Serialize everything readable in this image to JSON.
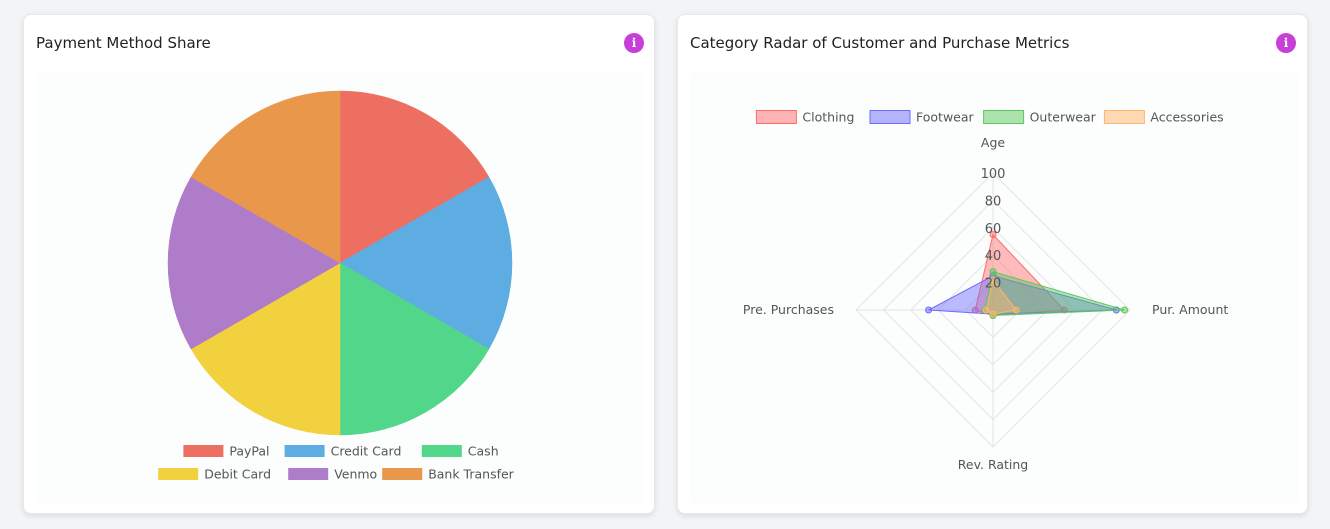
{
  "charts": {
    "pie": {
      "title": "Payment Method Share",
      "info_label": "i"
    },
    "radar": {
      "title": "Category Radar of Customer and Purchase Metrics",
      "info_label": "i"
    }
  },
  "chart_data": [
    {
      "type": "pie",
      "title": "Payment Method Share",
      "legend_position": "bottom",
      "categories": [
        "PayPal",
        "Credit Card",
        "Cash",
        "Debit Card",
        "Venmo",
        "Bank Transfer"
      ],
      "values": [
        1,
        1,
        1,
        1,
        1,
        1
      ],
      "colors": [
        "#ec6f62",
        "#5dade2",
        "#52d68a",
        "#f2d13f",
        "#ae7cc8",
        "#e9974b"
      ]
    },
    {
      "type": "radar",
      "title": "Category Radar of Customer and Purchase Metrics",
      "legend_position": "top",
      "axes": [
        "Age",
        "Pur. Amount",
        "Rev. Rating",
        "Pre. Purchases"
      ],
      "ticks": [
        20,
        40,
        60,
        80,
        100
      ],
      "r_range": [
        0,
        100
      ],
      "series": [
        {
          "name": "Clothing",
          "values": [
            55,
            52,
            4,
            13
          ],
          "color": "#ff6b6b"
        },
        {
          "name": "Footwear",
          "values": [
            25,
            90,
            3,
            47
          ],
          "color": "#6b6bff"
        },
        {
          "name": "Outerwear",
          "values": [
            28,
            96,
            4,
            6
          ],
          "color": "#5cc85c"
        },
        {
          "name": "Accessories",
          "values": [
            22,
            17,
            3,
            5
          ],
          "color": "#ffb66b"
        }
      ]
    }
  ]
}
